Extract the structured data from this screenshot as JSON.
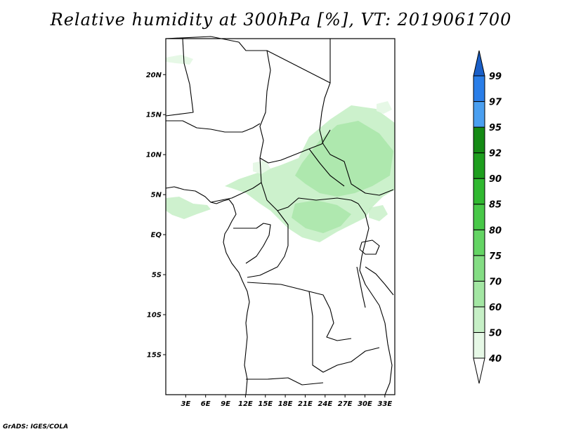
{
  "title": "Relative humidity at 300hPa [%], VT: 2019061700",
  "credit": "GrADS: IGES/COLA",
  "map": {
    "lon_range": [
      0,
      34.5
    ],
    "lat_range": [
      -20,
      24.5
    ],
    "lat_ticks": [
      {
        "value": 20,
        "label": "20N"
      },
      {
        "value": 15,
        "label": "15N"
      },
      {
        "value": 10,
        "label": "10N"
      },
      {
        "value": 5,
        "label": "5N"
      },
      {
        "value": 0,
        "label": "EQ"
      },
      {
        "value": -5,
        "label": "5S"
      },
      {
        "value": -10,
        "label": "10S"
      },
      {
        "value": -15,
        "label": "15S"
      }
    ],
    "lon_ticks": [
      {
        "value": 3,
        "label": "3E"
      },
      {
        "value": 6,
        "label": "6E"
      },
      {
        "value": 9,
        "label": "9E"
      },
      {
        "value": 12,
        "label": "12E"
      },
      {
        "value": 15,
        "label": "15E"
      },
      {
        "value": 18,
        "label": "18E"
      },
      {
        "value": 21,
        "label": "21E"
      },
      {
        "value": 24,
        "label": "24E"
      },
      {
        "value": 27,
        "label": "27E"
      },
      {
        "value": 30,
        "label": "30E"
      },
      {
        "value": 33,
        "label": "33E"
      }
    ],
    "shading_colors": [
      "#e6f8e6",
      "#c6efc6",
      "#a8e6a8"
    ]
  },
  "colorbar": {
    "levels": [
      "40",
      "50",
      "60",
      "70",
      "75",
      "80",
      "85",
      "90",
      "92",
      "95",
      "97",
      "99"
    ],
    "colors": [
      "#ffffff",
      "#e6f8e6",
      "#c6efc6",
      "#a3e6a3",
      "#84dd84",
      "#64d464",
      "#48c848",
      "#30b830",
      "#1e9e1e",
      "#148a14",
      "#4a9ff0",
      "#2a7ee8",
      "#1a5fc8"
    ]
  }
}
